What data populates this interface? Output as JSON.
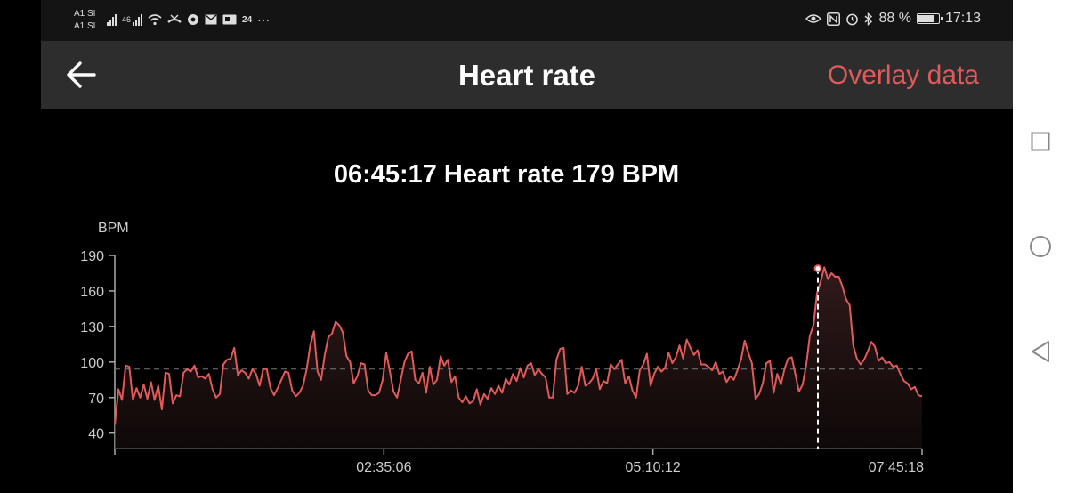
{
  "status_bar": {
    "carrier_1": "A1 SI",
    "carrier_2": "A1 SI",
    "network": "46",
    "date_badge": "24",
    "more": "···",
    "battery": "88 %",
    "battery_level": 0.88,
    "time": "17:13"
  },
  "app_bar": {
    "title": "Heart rate",
    "overlay_label": "Overlay data",
    "accent_color": "#e05a5a"
  },
  "selection": {
    "time": "06:45:17",
    "label": "Heart rate",
    "value": "179",
    "unit": "BPM"
  },
  "chart_data": {
    "type": "area",
    "ylabel": "BPM",
    "y_ticks": [
      "190",
      "160",
      "130",
      "100",
      "70",
      "40"
    ],
    "y_tick_values": [
      190,
      160,
      130,
      100,
      70,
      40
    ],
    "x_tick_labels": [
      "02:35:06",
      "05:10:12",
      "07:45:18"
    ],
    "x_tick_values": [
      9306,
      18612,
      27918
    ],
    "x_range": [
      0,
      27918
    ],
    "ylim": [
      27,
      190
    ],
    "reference_line": 94,
    "selected_point": {
      "x": 24317,
      "y": 179
    },
    "line_color": "#e05a5a",
    "series": [
      {
        "values": [
          47,
          77,
          68,
          97,
          96,
          68,
          78,
          70,
          81,
          69,
          83,
          68,
          80,
          60,
          91,
          90,
          65,
          72,
          71,
          91,
          94,
          92,
          97,
          87,
          88,
          86,
          90,
          77,
          70,
          73,
          98,
          102,
          103,
          112,
          89,
          93,
          91,
          86,
          94,
          90,
          80,
          94,
          94,
          78,
          72,
          78,
          85,
          92,
          91,
          76,
          71,
          74,
          80,
          94,
          114,
          126,
          92,
          85,
          106,
          121,
          124,
          134,
          131,
          125,
          105,
          100,
          82,
          88,
          99,
          98,
          76,
          72,
          72,
          74,
          85,
          108,
          92,
          75,
          70,
          85,
          100,
          107,
          109,
          85,
          82,
          91,
          74,
          96,
          81,
          85,
          105,
          97,
          102,
          83,
          88,
          70,
          66,
          71,
          65,
          67,
          77,
          64,
          73,
          69,
          78,
          73,
          80,
          74,
          86,
          81,
          90,
          84,
          95,
          87,
          97,
          99,
          89,
          94,
          90,
          87,
          70,
          70,
          102,
          111,
          112,
          73,
          76,
          74,
          80,
          96,
          80,
          82,
          86,
          94,
          77,
          84,
          82,
          98,
          94,
          98,
          102,
          82,
          88,
          76,
          70,
          93,
          98,
          107,
          80,
          90,
          96,
          92,
          95,
          108,
          99,
          104,
          114,
          103,
          119,
          112,
          106,
          110,
          98,
          98,
          96,
          93,
          100,
          90,
          92,
          83,
          88,
          85,
          93,
          102,
          118,
          108,
          99,
          69,
          73,
          82,
          99,
          101,
          74,
          90,
          81,
          94,
          103,
          104,
          90,
          75,
          81,
          97,
          122,
          131,
          158,
          168,
          180,
          170,
          175,
          172,
          172,
          164,
          153,
          148,
          114,
          103,
          98,
          102,
          109,
          117,
          113,
          101,
          104,
          99,
          100,
          96,
          97,
          90,
          84,
          82,
          77,
          79,
          72,
          71
        ]
      }
    ]
  },
  "nav_bar": {
    "recent_icon": "square-icon",
    "home_icon": "circle-icon",
    "back_icon": "triangle-back-icon"
  }
}
